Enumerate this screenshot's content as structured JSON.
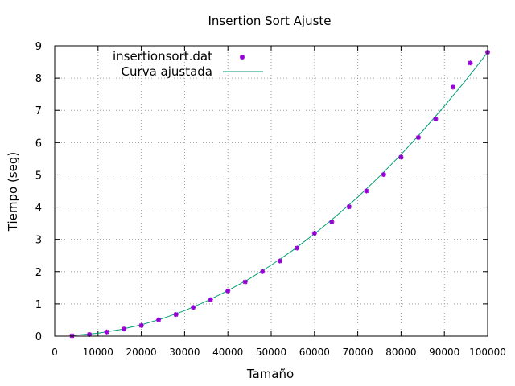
{
  "chart_data": {
    "type": "line",
    "title": "Insertion Sort Ajuste",
    "xlabel": "Tamaño",
    "ylabel": "Tiempo (seg)",
    "xlim": [
      0,
      100000
    ],
    "ylim": [
      0,
      9
    ],
    "x_ticks": [
      0,
      10000,
      20000,
      30000,
      40000,
      50000,
      60000,
      70000,
      80000,
      90000,
      100000
    ],
    "x_tick_labels": [
      "0",
      "10000",
      "20000",
      "30000",
      "40000",
      "50000",
      "60000",
      "70000",
      "80000",
      "90000",
      "100000"
    ],
    "y_ticks": [
      0,
      1,
      2,
      3,
      4,
      5,
      6,
      7,
      8,
      9
    ],
    "y_tick_labels": [
      "0",
      "1",
      "2",
      "3",
      "4",
      "5",
      "6",
      "7",
      "8",
      "9"
    ],
    "grid": true,
    "legend_position": "top-left",
    "series": [
      {
        "name": "insertionsort.dat",
        "kind": "points",
        "color": "#9400d3",
        "x": [
          4000,
          8000,
          12000,
          16000,
          20000,
          24000,
          28000,
          32000,
          36000,
          40000,
          44000,
          48000,
          52000,
          56000,
          60000,
          64000,
          68000,
          72000,
          76000,
          80000,
          84000,
          88000,
          92000,
          96000,
          100000
        ],
        "y": [
          0.01,
          0.05,
          0.13,
          0.22,
          0.33,
          0.51,
          0.67,
          0.89,
          1.13,
          1.4,
          1.68,
          2.0,
          2.33,
          2.73,
          3.19,
          3.54,
          4.01,
          4.5,
          5.01,
          5.55,
          6.16,
          6.73,
          7.72,
          8.47,
          8.8
        ]
      },
      {
        "name": "Curva ajustada",
        "kind": "line",
        "color": "#009e73",
        "x": [
          4000,
          10000,
          15000,
          20000,
          25000,
          30000,
          35000,
          40000,
          45000,
          50000,
          55000,
          60000,
          65000,
          70000,
          75000,
          80000,
          85000,
          90000,
          95000,
          100000
        ],
        "y": [
          0.02,
          0.09,
          0.2,
          0.35,
          0.55,
          0.79,
          1.08,
          1.41,
          1.78,
          2.2,
          2.66,
          3.17,
          3.72,
          4.31,
          4.95,
          5.63,
          6.36,
          7.13,
          7.94,
          8.8
        ]
      }
    ]
  }
}
